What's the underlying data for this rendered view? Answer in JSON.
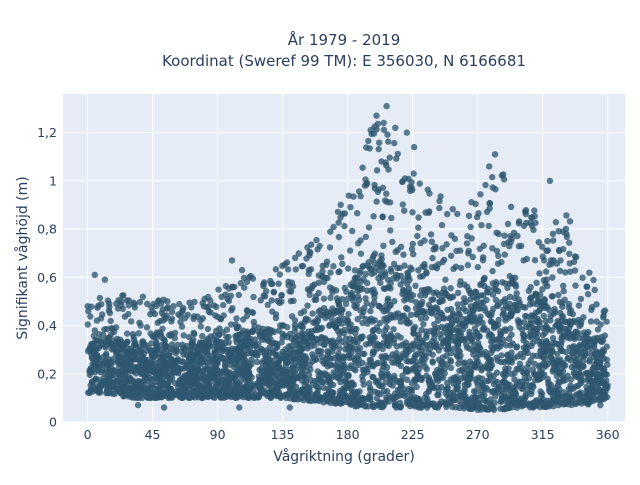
{
  "chart_data": {
    "type": "scatter",
    "title_line1": "År 1979 - 2019",
    "title_line2": "Koordinat (Sweref 99 TM): E 356030, N 6166681",
    "xlabel": "Vågriktning (grader)",
    "ylabel": "Signifikant våghöjd (m)",
    "xlim": [
      -17,
      372
    ],
    "ylim": [
      0,
      1.36
    ],
    "x_ticks": [
      0,
      45,
      90,
      135,
      180,
      225,
      270,
      315,
      360
    ],
    "x_tick_labels": [
      "0",
      "45",
      "90",
      "135",
      "180",
      "225",
      "270",
      "315",
      "360"
    ],
    "y_ticks": [
      0,
      0.2,
      0.4,
      0.6,
      0.8,
      1.0,
      1.2
    ],
    "y_tick_labels": [
      "0",
      "0,2",
      "0,4",
      "0,6",
      "0,8",
      "1",
      "1,2"
    ],
    "grid": true,
    "colors": {
      "plot_background": "#e5ecf6",
      "grid": "#ffffff",
      "marker": "#2e566e",
      "text": "#2a3f5f"
    },
    "envelope": [
      {
        "x": 0,
        "y_min": 0.12,
        "y_max": 0.5
      },
      {
        "x": 15,
        "y_min": 0.12,
        "y_max": 0.55
      },
      {
        "x": 30,
        "y_min": 0.1,
        "y_max": 0.52
      },
      {
        "x": 45,
        "y_min": 0.1,
        "y_max": 0.52
      },
      {
        "x": 60,
        "y_min": 0.1,
        "y_max": 0.5
      },
      {
        "x": 75,
        "y_min": 0.1,
        "y_max": 0.52
      },
      {
        "x": 90,
        "y_min": 0.1,
        "y_max": 0.55
      },
      {
        "x": 105,
        "y_min": 0.1,
        "y_max": 0.6
      },
      {
        "x": 120,
        "y_min": 0.1,
        "y_max": 0.62
      },
      {
        "x": 135,
        "y_min": 0.1,
        "y_max": 0.65
      },
      {
        "x": 150,
        "y_min": 0.09,
        "y_max": 0.72
      },
      {
        "x": 165,
        "y_min": 0.08,
        "y_max": 0.8
      },
      {
        "x": 180,
        "y_min": 0.07,
        "y_max": 0.95
      },
      {
        "x": 190,
        "y_min": 0.06,
        "y_max": 1.12
      },
      {
        "x": 200,
        "y_min": 0.06,
        "y_max": 1.25
      },
      {
        "x": 210,
        "y_min": 0.06,
        "y_max": 1.18
      },
      {
        "x": 225,
        "y_min": 0.06,
        "y_max": 1.05
      },
      {
        "x": 240,
        "y_min": 0.06,
        "y_max": 0.95
      },
      {
        "x": 255,
        "y_min": 0.06,
        "y_max": 0.9
      },
      {
        "x": 270,
        "y_min": 0.05,
        "y_max": 0.95
      },
      {
        "x": 285,
        "y_min": 0.05,
        "y_max": 1.05
      },
      {
        "x": 300,
        "y_min": 0.06,
        "y_max": 0.92
      },
      {
        "x": 315,
        "y_min": 0.06,
        "y_max": 0.92
      },
      {
        "x": 330,
        "y_min": 0.07,
        "y_max": 0.9
      },
      {
        "x": 345,
        "y_min": 0.07,
        "y_max": 0.65
      },
      {
        "x": 360,
        "y_min": 0.1,
        "y_max": 0.5
      }
    ],
    "outliers": [
      {
        "x": 196,
        "y": 1.21
      },
      {
        "x": 200,
        "y": 1.27
      },
      {
        "x": 205,
        "y": 1.24
      },
      {
        "x": 207,
        "y": 1.31
      },
      {
        "x": 213,
        "y": 1.22
      },
      {
        "x": 221,
        "y": 1.2
      },
      {
        "x": 226,
        "y": 1.14
      },
      {
        "x": 282,
        "y": 1.11
      },
      {
        "x": 278,
        "y": 1.06
      },
      {
        "x": 320,
        "y": 1.0
      },
      {
        "x": 270,
        "y": 0.06
      },
      {
        "x": 275,
        "y": 0.06
      },
      {
        "x": 280,
        "y": 0.06
      },
      {
        "x": 326,
        "y": 0.07
      },
      {
        "x": 355,
        "y": 0.07
      },
      {
        "x": 35,
        "y": 0.07
      },
      {
        "x": 53,
        "y": 0.06
      },
      {
        "x": 105,
        "y": 0.06
      },
      {
        "x": 140,
        "y": 0.06
      },
      {
        "x": 5,
        "y": 0.61
      },
      {
        "x": 12,
        "y": 0.59
      },
      {
        "x": 100,
        "y": 0.67
      },
      {
        "x": 107,
        "y": 0.63
      }
    ]
  }
}
